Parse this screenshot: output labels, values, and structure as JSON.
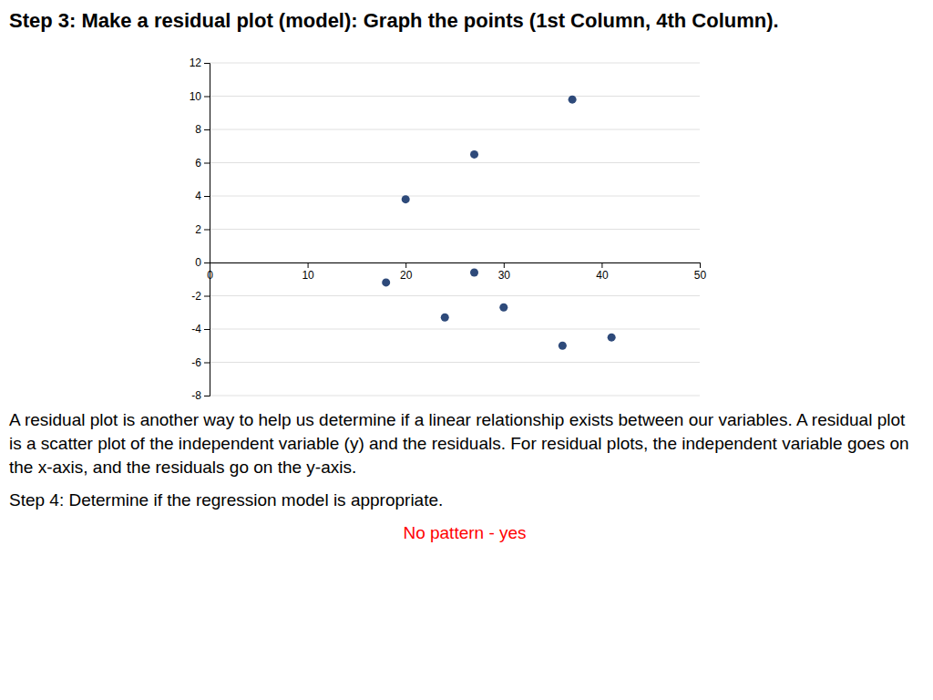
{
  "chart_data": {
    "type": "scatter",
    "title": "Step 3: Make a residual plot (model): Graph the points (1st Column, 4th Column).",
    "x": [
      18,
      20,
      24,
      27,
      27,
      30,
      36,
      37,
      41
    ],
    "values": [
      -1.2,
      3.8,
      -3.3,
      -0.6,
      6.5,
      -2.7,
      -5.0,
      9.8,
      -4.5
    ],
    "color": "#2E4A7A",
    "xlim": [
      0,
      50
    ],
    "ylim": [
      -8,
      12
    ],
    "xticks": [
      0,
      10,
      20,
      30,
      40,
      50
    ],
    "yticks": [
      -8,
      -6,
      -4,
      -2,
      0,
      2,
      4,
      6,
      8,
      10,
      12
    ],
    "grid": "y",
    "annotations": [
      {
        "text": "A residual plot is another way to help us determine if a linear relationship exists between our variables. A residual plot is a scatter plot of the independent variable (y) and the residuals. For residual plots, the independent variable goes on the x-axis, and the residuals go on the y-axis."
      },
      {
        "text": "Step 4: Determine if the regression model is appropriate."
      },
      {
        "text": "No pattern - yes",
        "color": "#FF0000"
      }
    ]
  }
}
